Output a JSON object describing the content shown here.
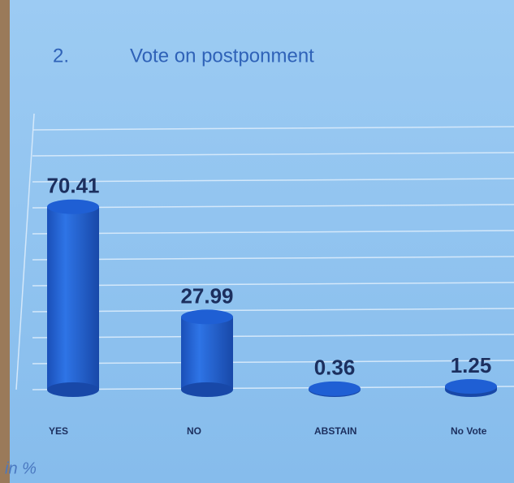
{
  "chart_data": {
    "type": "bar",
    "number": "2.",
    "title": "Vote on postponment",
    "categories": [
      "YES",
      "NO",
      "ABSTAIN",
      "No Vote"
    ],
    "values": [
      70.41,
      27.99,
      0.36,
      1.25
    ],
    "color": "#1f5fd4",
    "ylim": [
      0,
      100
    ],
    "yticks": [
      0,
      10,
      20,
      30,
      40,
      50,
      60,
      70,
      80,
      90,
      100
    ],
    "grid": true,
    "note": "in %"
  }
}
